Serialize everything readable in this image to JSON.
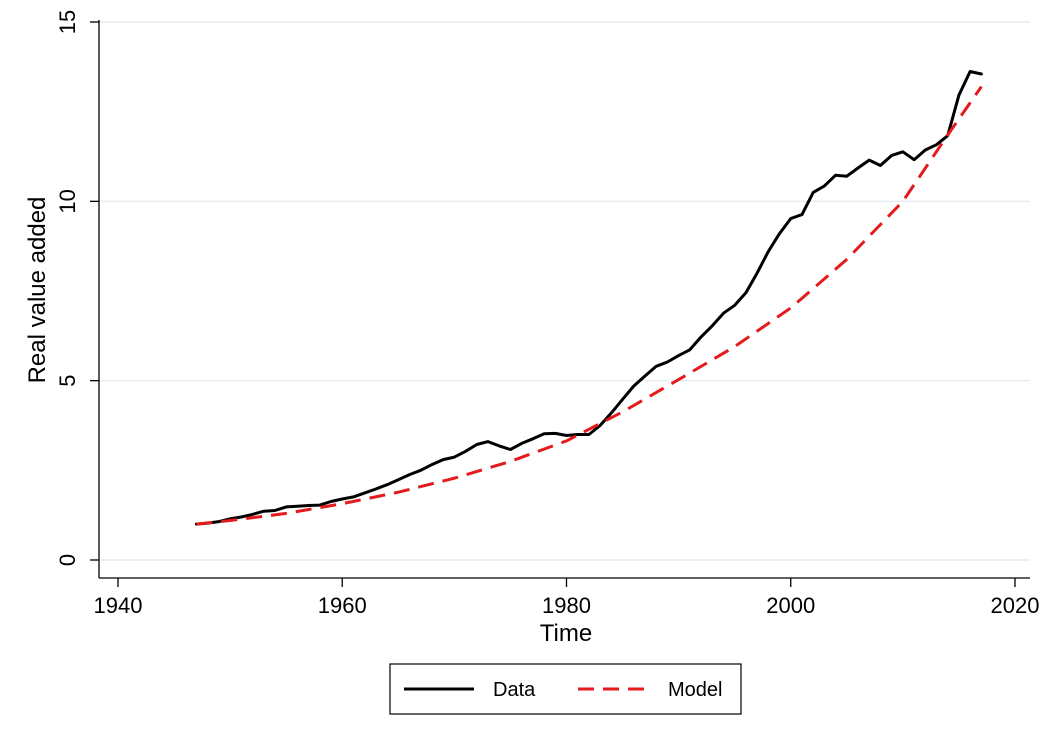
{
  "chart_data": {
    "type": "line",
    "title": "",
    "xlabel": "Time",
    "ylabel": "Real value added",
    "xlim": [
      1940,
      2020
    ],
    "ylim": [
      0,
      15
    ],
    "xticks": [
      1940,
      1960,
      1980,
      2000,
      2020
    ],
    "yticks": [
      0,
      5,
      10,
      15
    ],
    "grid": "horizontal",
    "legend_position": "bottom",
    "series": [
      {
        "name": "Data",
        "color": "#000000",
        "style": "solid",
        "x": [
          1947,
          1948,
          1949,
          1950,
          1951,
          1952,
          1953,
          1954,
          1955,
          1956,
          1957,
          1958,
          1959,
          1960,
          1961,
          1962,
          1963,
          1964,
          1965,
          1966,
          1967,
          1968,
          1969,
          1970,
          1971,
          1972,
          1973,
          1974,
          1975,
          1976,
          1977,
          1978,
          1979,
          1980,
          1981,
          1982,
          1983,
          1984,
          1985,
          1986,
          1987,
          1988,
          1989,
          1990,
          1991,
          1992,
          1993,
          1994,
          1995,
          1996,
          1997,
          1998,
          1999,
          2000,
          2001,
          2002,
          2003,
          2004,
          2005,
          2006,
          2007,
          2008,
          2009,
          2010,
          2011,
          2012,
          2013,
          2014,
          2015,
          2016,
          2017
        ],
        "y": [
          1.0,
          1.03,
          1.07,
          1.15,
          1.2,
          1.27,
          1.36,
          1.38,
          1.48,
          1.5,
          1.52,
          1.53,
          1.63,
          1.7,
          1.76,
          1.87,
          1.98,
          2.1,
          2.24,
          2.38,
          2.5,
          2.66,
          2.8,
          2.87,
          3.03,
          3.22,
          3.3,
          3.18,
          3.08,
          3.25,
          3.38,
          3.52,
          3.53,
          3.47,
          3.5,
          3.5,
          3.75,
          4.1,
          4.48,
          4.85,
          5.13,
          5.4,
          5.52,
          5.7,
          5.86,
          6.22,
          6.53,
          6.88,
          7.1,
          7.45,
          8.0,
          8.6,
          9.1,
          9.52,
          9.63,
          10.25,
          10.43,
          10.73,
          10.7,
          10.93,
          11.15,
          11.0,
          11.28,
          11.38,
          11.16,
          11.43,
          11.58,
          11.83,
          12.96,
          13.62,
          13.55
        ]
      },
      {
        "name": "Model",
        "color": "#e41a1c",
        "style": "dashed",
        "x": [
          1947,
          1950,
          1955,
          1960,
          1965,
          1970,
          1975,
          1980,
          1985,
          1990,
          1995,
          2000,
          2005,
          2010,
          2014,
          2017
        ],
        "y": [
          1.0,
          1.1,
          1.3,
          1.57,
          1.89,
          2.28,
          2.75,
          3.32,
          4.13,
          5.03,
          5.95,
          7.03,
          8.38,
          10.0,
          11.85,
          13.2
        ]
      }
    ]
  }
}
